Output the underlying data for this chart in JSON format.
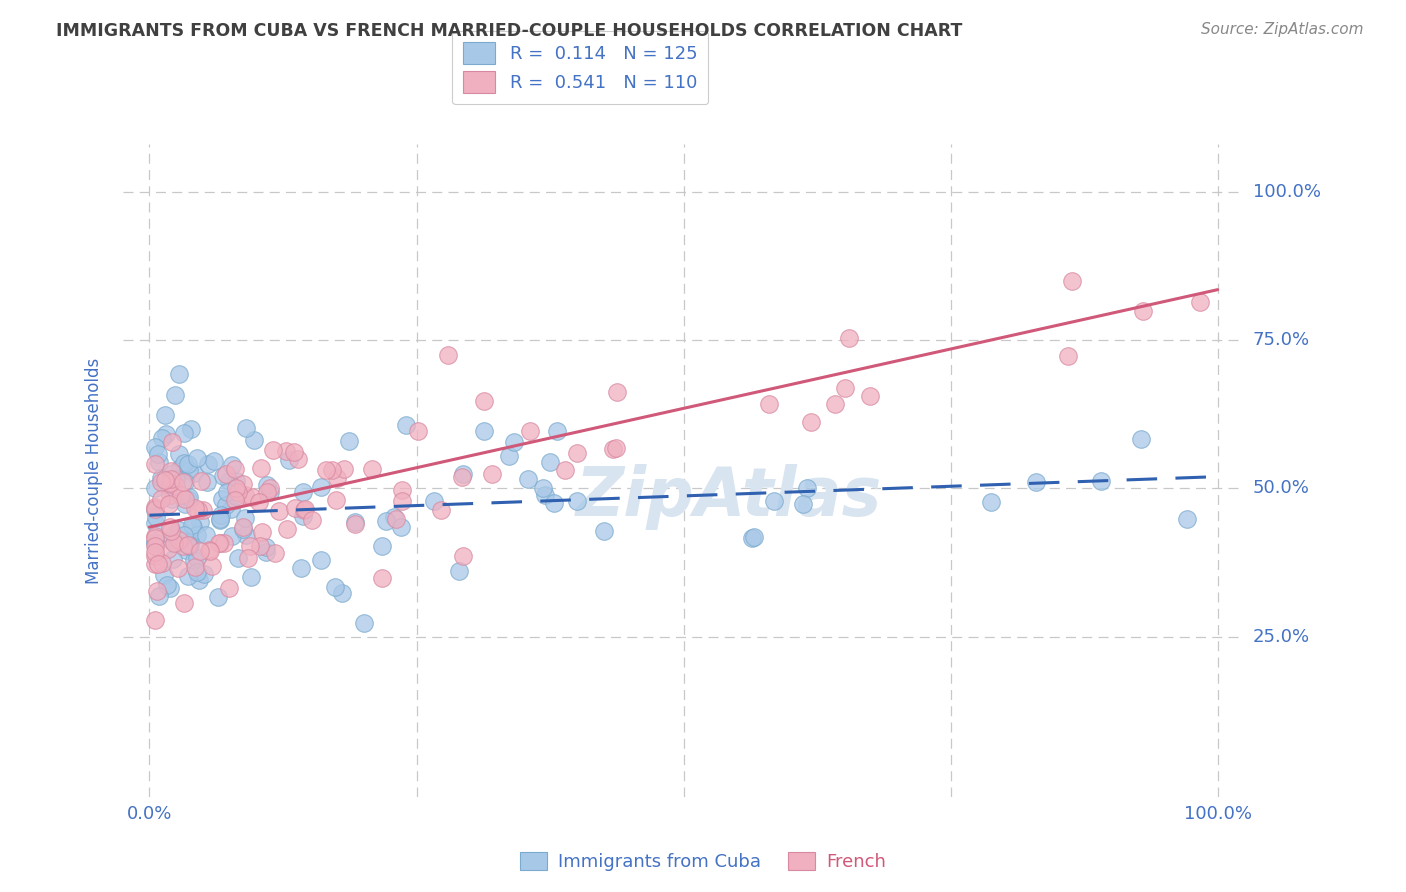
{
  "title": "IMMIGRANTS FROM CUBA VS FRENCH MARRIED-COUPLE HOUSEHOLDS CORRELATION CHART",
  "source": "Source: ZipAtlas.com",
  "ylabel": "Married-couple Households",
  "blue_R": 0.114,
  "blue_N": 125,
  "pink_R": 0.541,
  "pink_N": 110,
  "blue_color": "#a8c8e8",
  "blue_edge_color": "#7aaace",
  "blue_line_color": "#3060b0",
  "pink_color": "#f0b0c0",
  "pink_edge_color": "#d888a0",
  "pink_line_color": "#d05878",
  "watermark_color": "#d8e4f0",
  "background_color": "#ffffff",
  "grid_color": "#c8c8c8",
  "tick_color": "#4472c4",
  "title_color": "#404040",
  "source_color": "#888888",
  "legend_label_color": "#404040",
  "bottom_blue_label": "Immigrants from Cuba",
  "bottom_pink_label": "French"
}
